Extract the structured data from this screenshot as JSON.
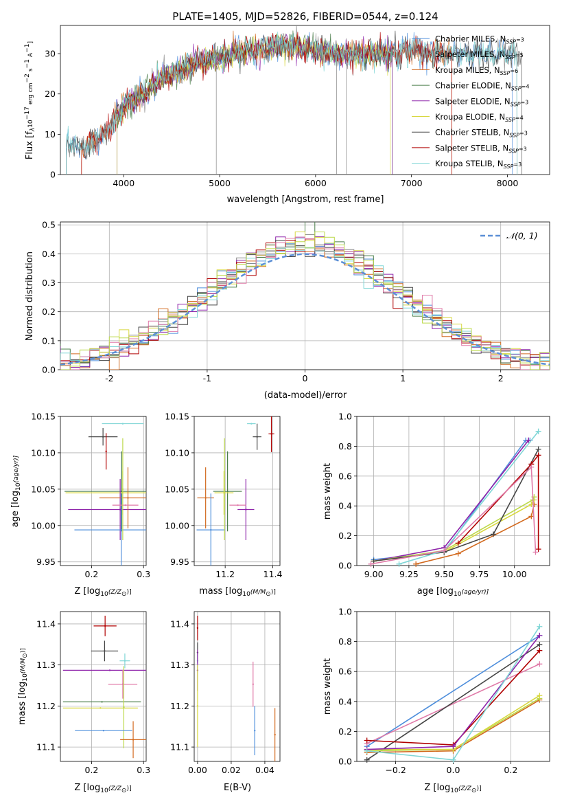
{
  "colors": {
    "cmiles": "#4f8fdc",
    "smiles": "#8a8a8a",
    "kmiles": "#d2691e",
    "celodie": "#4a7d4a",
    "selodie": "#8e24aa",
    "kelodie": "#d8d840",
    "cstelib": "#454545",
    "sstelib": "#b00000",
    "kstelib": "#7fd6d6",
    "pink": "#e07aa8",
    "lime": "#bcd94a",
    "normal": "#5b8fd6",
    "grid": "#b0b0b0"
  },
  "chart_data": [
    {
      "id": "spectrum",
      "type": "line",
      "title": "PLATE=1405, MJD=52826, FIBERID=0544, z=0.124",
      "xlabel": "wavelength [Angstrom, rest frame]",
      "ylabel_parts": [
        "Flux [f",
        "λ",
        "10",
        "−17",
        " erg cm",
        "−2",
        " s",
        "−1",
        " A",
        "−1",
        "]"
      ],
      "xlim": [
        3340,
        8440
      ],
      "ylim": [
        0,
        37
      ],
      "xticks": [
        4000,
        5000,
        6000,
        7000,
        8000
      ],
      "yticks": [
        0,
        10,
        20,
        30
      ],
      "continuum_x": [
        3400,
        3600,
        3800,
        4000,
        4200,
        4400,
        4600,
        4800,
        5000,
        5200,
        5400,
        5600,
        5800,
        6000,
        6200,
        6400,
        6600,
        6800,
        7000,
        7200,
        7400
      ],
      "continuum_y": [
        8,
        7,
        10,
        17,
        20,
        24,
        26,
        28,
        29,
        30,
        31,
        32,
        32,
        31,
        30,
        30,
        30,
        30,
        31,
        30,
        30
      ],
      "series": [
        {
          "name": "Chabrier MILES, N",
          "sub": "SSP",
          "tail": "=3",
          "color_key": "cmiles"
        },
        {
          "name": "Salpeter MILES, N",
          "sub": "SSP",
          "tail": "=5",
          "color_key": "smiles"
        },
        {
          "name": "Kroupa MILES, N",
          "sub": "SSP",
          "tail": "=6",
          "color_key": "kmiles"
        },
        {
          "name": "Chabrier ELODIE, N",
          "sub": "SSP",
          "tail": "=4",
          "color_key": "celodie"
        },
        {
          "name": "Salpeter ELODIE, N",
          "sub": "SSP",
          "tail": "=3",
          "color_key": "selodie"
        },
        {
          "name": "Kroupa ELODIE, N",
          "sub": "SSP",
          "tail": "=4",
          "color_key": "kelodie"
        },
        {
          "name": "Chabrier STELIB, N",
          "sub": "SSP",
          "tail": "=3",
          "color_key": "cstelib"
        },
        {
          "name": "Salpeter STELIB, N",
          "sub": "SSP",
          "tail": "=3",
          "color_key": "sstelib"
        },
        {
          "name": "Kroupa STELIB, N",
          "sub": "SSP",
          "tail": "=3",
          "color_key": "kstelib"
        }
      ],
      "legend": "top-right",
      "grid": false
    },
    {
      "id": "residuals",
      "type": "histogram",
      "xlabel": "(data-model)/error",
      "ylabel": "Normed distribution",
      "xlim": [
        -2.5,
        2.5
      ],
      "ylim": [
        0,
        0.51
      ],
      "xticks": [
        -2,
        -1,
        0,
        1,
        2
      ],
      "yticks": [
        0.0,
        0.1,
        0.2,
        0.3,
        0.4,
        0.5
      ],
      "legend_label": "𝒩(0, 1)",
      "legend": "top-right",
      "grid": true
    },
    {
      "id": "age_vs_z",
      "type": "scatter",
      "xlabel_parts": [
        "Z [log",
        "10",
        "(Z/Z",
        "⊙",
        ")]"
      ],
      "ylabel_parts": [
        "age  [log",
        "10",
        "(age/yr)]"
      ],
      "xlim": [
        0.14,
        0.305
      ],
      "ylim": [
        9.945,
        10.15
      ],
      "xticks": [
        0.2,
        0.3
      ],
      "yticks": [
        9.95,
        10.0,
        10.05,
        10.1,
        10.15
      ],
      "points": [
        {
          "x": 0.222,
          "y": 10.122,
          "xerr": 0.028,
          "yerr": 0.012,
          "color_key": "cstelib"
        },
        {
          "x": 0.228,
          "y": 10.102,
          "xerr": 0.0,
          "yerr": 0.025,
          "color_key": "sstelib"
        },
        {
          "x": 0.26,
          "y": 10.14,
          "xerr": 0.04,
          "yerr": 0.0,
          "color_key": "kstelib"
        },
        {
          "x": 0.258,
          "y": 10.047,
          "xerr": 0.11,
          "yerr": 0.055,
          "color_key": "celodie"
        },
        {
          "x": 0.26,
          "y": 10.045,
          "xerr": 0.11,
          "yerr": 0.03,
          "color_key": "kelodie"
        },
        {
          "x": 0.255,
          "y": 10.022,
          "xerr": 0.1,
          "yerr": 0.042,
          "color_key": "selodie"
        },
        {
          "x": 0.27,
          "y": 10.038,
          "xerr": 0.055,
          "yerr": 0.042,
          "color_key": "kmiles"
        },
        {
          "x": 0.257,
          "y": 9.994,
          "xerr": 0.09,
          "yerr": 0.05,
          "color_key": "cmiles"
        },
        {
          "x": 0.265,
          "y": 10.028,
          "xerr": 0.025,
          "yerr": 0.0,
          "color_key": "pink"
        },
        {
          "x": 0.26,
          "y": 10.05,
          "xerr": 0.0,
          "yerr": 0.07,
          "color_key": "lime"
        }
      ],
      "grid": true
    },
    {
      "id": "age_vs_mass",
      "type": "scatter",
      "xlabel_parts": [
        "mass [log",
        "10",
        "(M/M",
        "⊙",
        ")]"
      ],
      "ylabel": "",
      "xlim": [
        11.07,
        11.43
      ],
      "ylim": [
        9.945,
        10.15
      ],
      "xticks": [
        11.2,
        11.4
      ],
      "yticks": [
        9.95,
        10.0,
        10.05,
        10.1,
        10.15
      ],
      "points": [
        {
          "x": 11.334,
          "y": 10.122,
          "xerr": 0.018,
          "yerr": 0.018,
          "color_key": "cstelib"
        },
        {
          "x": 11.394,
          "y": 10.126,
          "xerr": 0.012,
          "yerr": 0.025,
          "color_key": "sstelib"
        },
        {
          "x": 11.31,
          "y": 10.14,
          "xerr": 0.018,
          "yerr": 0.0,
          "color_key": "kstelib"
        },
        {
          "x": 11.21,
          "y": 10.047,
          "xerr": 0.06,
          "yerr": 0.055,
          "color_key": "celodie"
        },
        {
          "x": 11.195,
          "y": 10.045,
          "xerr": 0.04,
          "yerr": 0.03,
          "color_key": "kelodie"
        },
        {
          "x": 11.287,
          "y": 10.022,
          "xerr": 0.035,
          "yerr": 0.042,
          "color_key": "selodie"
        },
        {
          "x": 11.118,
          "y": 10.038,
          "xerr": 0.035,
          "yerr": 0.042,
          "color_key": "kmiles"
        },
        {
          "x": 11.14,
          "y": 9.994,
          "xerr": 0.06,
          "yerr": 0.05,
          "color_key": "cmiles"
        },
        {
          "x": 11.253,
          "y": 10.028,
          "xerr": 0.035,
          "yerr": 0.0,
          "color_key": "pink"
        },
        {
          "x": 11.197,
          "y": 10.05,
          "xerr": 0.0,
          "yerr": 0.07,
          "color_key": "lime"
        }
      ],
      "grid": true
    },
    {
      "id": "weight_vs_age",
      "type": "line",
      "xlabel_parts": [
        "age  [log",
        "10",
        "(age/yr)]"
      ],
      "ylabel": "mass weight",
      "xlim": [
        8.88,
        10.25
      ],
      "ylim": [
        0,
        1.0
      ],
      "xticks": [
        9.0,
        9.25,
        9.5,
        9.75,
        10.0
      ],
      "yticks": [
        0.0,
        0.2,
        0.4,
        0.6,
        0.8,
        1.0
      ],
      "series": [
        {
          "color_key": "cmiles",
          "x": [
            9.0,
            9.5,
            10.08,
            10.11
          ],
          "y": [
            0.04,
            0.09,
            0.84,
            0.84
          ]
        },
        {
          "color_key": "kmiles",
          "x": [
            9.3,
            9.6,
            10.12,
            10.14
          ],
          "y": [
            0.01,
            0.08,
            0.33,
            0.41
          ]
        },
        {
          "color_key": "selodie",
          "x": [
            9.0,
            9.5,
            10.1,
            10.1
          ],
          "y": [
            0.03,
            0.12,
            0.84,
            0.84
          ]
        },
        {
          "color_key": "kelodie",
          "x": [
            9.0,
            9.5,
            10.12,
            10.14
          ],
          "y": [
            0.03,
            0.09,
            0.41,
            0.44
          ]
        },
        {
          "color_key": "lime",
          "x": [
            9.0,
            9.5,
            10.13,
            10.14
          ],
          "y": [
            0.03,
            0.1,
            0.44,
            0.46
          ]
        },
        {
          "color_key": "cstelib",
          "x": [
            9.0,
            9.5,
            9.85,
            10.17
          ],
          "y": [
            0.03,
            0.09,
            0.21,
            0.78
          ]
        },
        {
          "color_key": "sstelib",
          "x": [
            9.6,
            10.12,
            10.17,
            10.17
          ],
          "y": [
            0.15,
            0.68,
            0.74,
            0.11
          ]
        },
        {
          "color_key": "kstelib",
          "x": [
            9.18,
            9.5,
            10.17,
            10.17
          ],
          "y": [
            0.01,
            0.1,
            0.9,
            0.9
          ]
        },
        {
          "color_key": "pink",
          "x": [
            8.98,
            9.5,
            10.12,
            10.15
          ],
          "y": [
            0.01,
            0.1,
            0.66,
            0.09
          ]
        }
      ],
      "grid": true
    },
    {
      "id": "mass_vs_z",
      "type": "scatter",
      "xlabel_parts": [
        "Z [log",
        "10",
        "(Z/Z",
        "⊙",
        ")]"
      ],
      "ylabel_parts": [
        "mass [log",
        "10",
        "(M/M",
        "⊙",
        ")]"
      ],
      "xlim": [
        0.14,
        0.305
      ],
      "ylim": [
        11.065,
        11.43
      ],
      "xticks": [
        0.2,
        0.3
      ],
      "yticks": [
        11.1,
        11.2,
        11.3,
        11.4
      ],
      "points": [
        {
          "x": 0.226,
          "y": 11.395,
          "xerr": 0.022,
          "yerr": 0.025,
          "color_key": "sstelib"
        },
        {
          "x": 0.225,
          "y": 11.334,
          "xerr": 0.026,
          "yerr": 0.025,
          "color_key": "cstelib"
        },
        {
          "x": 0.264,
          "y": 11.31,
          "xerr": 0.01,
          "yerr": 0.018,
          "color_key": "kstelib"
        },
        {
          "x": 0.235,
          "y": 11.287,
          "xerr": 0.09,
          "yerr": 0.0,
          "color_key": "selodie"
        },
        {
          "x": 0.26,
          "y": 11.253,
          "xerr": 0.028,
          "yerr": 0.035,
          "color_key": "pink"
        },
        {
          "x": 0.22,
          "y": 11.21,
          "xerr": 0.075,
          "yerr": 0.0,
          "color_key": "celodie"
        },
        {
          "x": 0.217,
          "y": 11.195,
          "xerr": 0.072,
          "yerr": 0.0,
          "color_key": "kelodie"
        },
        {
          "x": 0.262,
          "y": 11.197,
          "xerr": 0.0,
          "yerr": 0.1,
          "color_key": "lime"
        },
        {
          "x": 0.223,
          "y": 11.14,
          "xerr": 0.055,
          "yerr": 0.0,
          "color_key": "cmiles"
        },
        {
          "x": 0.28,
          "y": 11.118,
          "xerr": 0.025,
          "yerr": 0.045,
          "color_key": "kmiles"
        }
      ],
      "grid": true
    },
    {
      "id": "mass_vs_ebv",
      "type": "scatter",
      "xlabel": "E(B-V)",
      "ylabel": "",
      "xlim": [
        -0.002,
        0.049
      ],
      "ylim": [
        11.065,
        11.43
      ],
      "xticks": [
        0.0,
        0.02,
        0.04
      ],
      "yticks": [
        11.1,
        11.2,
        11.3,
        11.4
      ],
      "points": [
        {
          "x": 0.0,
          "y": 11.39,
          "xerr": 0.0,
          "yerr": 0.03,
          "color_key": "sstelib"
        },
        {
          "x": 0.0,
          "y": 11.33,
          "xerr": 0.0,
          "yerr": 0.025,
          "color_key": "cstelib"
        },
        {
          "x": 0.0,
          "y": 11.31,
          "xerr": 0.0,
          "yerr": 0.02,
          "color_key": "kstelib"
        },
        {
          "x": 0.0,
          "y": 11.287,
          "xerr": 0.0,
          "yerr": 0.05,
          "color_key": "selodie"
        },
        {
          "x": 0.0,
          "y": 11.2,
          "xerr": 0.0,
          "yerr": 0.1,
          "color_key": "kelodie"
        },
        {
          "x": 0.033,
          "y": 11.253,
          "xerr": 0.0,
          "yerr": 0.055,
          "color_key": "pink"
        },
        {
          "x": 0.034,
          "y": 11.14,
          "xerr": 0.0,
          "yerr": 0.06,
          "color_key": "cmiles"
        },
        {
          "x": 0.046,
          "y": 11.13,
          "xerr": 0.0,
          "yerr": 0.065,
          "color_key": "kmiles"
        }
      ],
      "grid": true
    },
    {
      "id": "weight_vs_z",
      "type": "line",
      "xlabel_parts": [
        "Z [log",
        "10",
        "(Z/Z",
        "⊙",
        ")]"
      ],
      "ylabel": "mass weight",
      "xlim": [
        -0.335,
        0.335
      ],
      "ylim": [
        0,
        1.0
      ],
      "xticks": [
        -0.2,
        0.0,
        0.2
      ],
      "yticks": [
        0.0,
        0.2,
        0.4,
        0.6,
        0.8,
        1.0
      ],
      "series": [
        {
          "color_key": "cmiles",
          "x": [
            -0.3,
            0.3
          ],
          "y": [
            0.1,
            0.84
          ]
        },
        {
          "color_key": "pink",
          "x": [
            -0.3,
            0.3
          ],
          "y": [
            0.12,
            0.65
          ]
        },
        {
          "color_key": "cstelib",
          "x": [
            -0.3,
            0.3
          ],
          "y": [
            0.01,
            0.78
          ]
        },
        {
          "color_key": "kmiles",
          "x": [
            -0.3,
            0.0,
            0.3
          ],
          "y": [
            0.06,
            0.07,
            0.41
          ]
        },
        {
          "color_key": "lime",
          "x": [
            -0.3,
            0.0,
            0.3
          ],
          "y": [
            0.07,
            0.08,
            0.42
          ]
        },
        {
          "color_key": "kelodie",
          "x": [
            -0.3,
            0.0,
            0.3
          ],
          "y": [
            0.08,
            0.08,
            0.44
          ]
        },
        {
          "color_key": "sstelib",
          "x": [
            -0.3,
            0.0,
            0.3
          ],
          "y": [
            0.14,
            0.11,
            0.74
          ]
        },
        {
          "color_key": "selodie",
          "x": [
            -0.3,
            0.0,
            0.3
          ],
          "y": [
            0.08,
            0.1,
            0.84
          ]
        },
        {
          "color_key": "kstelib",
          "x": [
            -0.3,
            0.0,
            0.3
          ],
          "y": [
            0.07,
            0.01,
            0.9
          ]
        }
      ],
      "grid": true
    }
  ]
}
